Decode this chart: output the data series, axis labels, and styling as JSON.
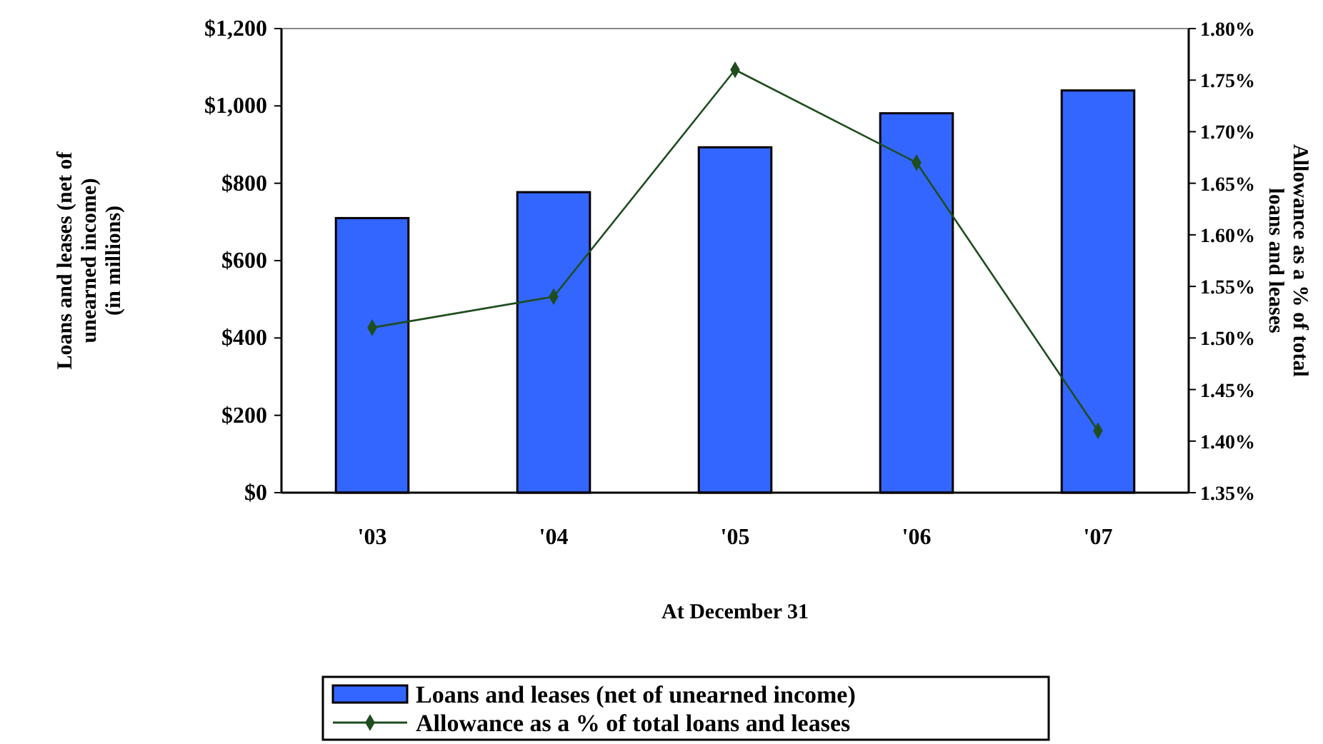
{
  "chart_data": {
    "type": "bar",
    "xlabel": "At December 31",
    "ylabel": "Loans and leases (net of\nunearned income)\n(in millions)",
    "y2label": "Allowance as a % of total\nloans and leases",
    "categories": [
      "'03",
      "'04",
      "'05",
      "'06",
      "'07"
    ],
    "series": [
      {
        "name": "Loans and leases (net of unearned income)",
        "color": "#3366ff",
        "values": [
          710,
          777,
          893,
          981,
          1040
        ]
      },
      {
        "name": "Allowance as a % of total loans and leases",
        "type": "line",
        "axis": "y2",
        "color": "#1e4d1e",
        "marker": "diamond",
        "values": [
          1.51,
          1.54,
          1.76,
          1.67,
          1.41
        ]
      }
    ],
    "ylim": [
      0,
      1200
    ],
    "yticks": [
      {
        "value": 0,
        "label": "$0"
      },
      {
        "value": 200,
        "label": "$200"
      },
      {
        "value": 400,
        "label": "$400"
      },
      {
        "value": 600,
        "label": "$600"
      },
      {
        "value": 800,
        "label": "$800"
      },
      {
        "value": 1000,
        "label": "$1,000"
      },
      {
        "value": 1200,
        "label": "$1,200"
      }
    ],
    "y2lim": [
      1.35,
      1.8
    ],
    "y2ticks": [
      {
        "value": 1.35,
        "label": "1.35%"
      },
      {
        "value": 1.4,
        "label": "1.40%"
      },
      {
        "value": 1.45,
        "label": "1.45%"
      },
      {
        "value": 1.5,
        "label": "1.50%"
      },
      {
        "value": 1.55,
        "label": "1.55%"
      },
      {
        "value": 1.6,
        "label": "1.60%"
      },
      {
        "value": 1.65,
        "label": "1.65%"
      },
      {
        "value": 1.7,
        "label": "1.70%"
      },
      {
        "value": 1.75,
        "label": "1.75%"
      },
      {
        "value": 1.8,
        "label": "1.80%"
      }
    ],
    "grid": false,
    "legend": "bottom"
  }
}
